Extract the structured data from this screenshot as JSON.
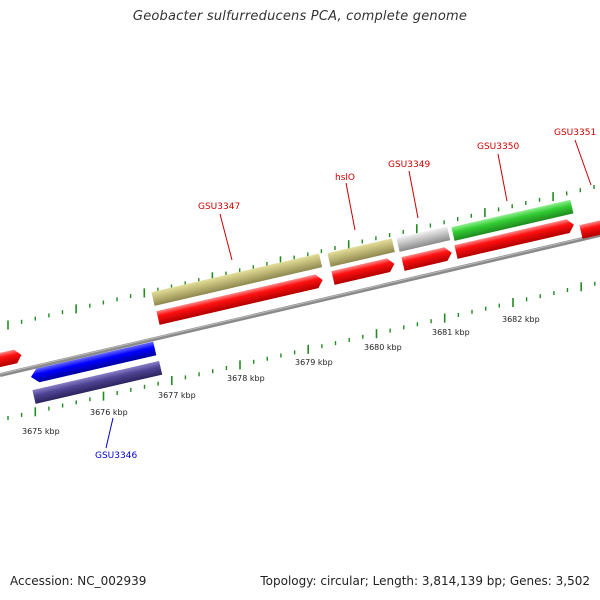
{
  "title": "Geobacter sulfurreducens PCA, complete genome",
  "footer": {
    "accession": "Accession: NC_002939",
    "summary": "Topology: circular; Length: 3,814,139 bp; Genes: 3,502"
  },
  "kbp_labels": [
    "3675 kbp",
    "3676 kbp",
    "3677 kbp",
    "3678 kbp",
    "3679 kbp",
    "3680 kbp",
    "3681 kbp",
    "3682 kbp"
  ],
  "gene_labels": [
    {
      "name": "GSU3346",
      "color": "#0000cc"
    },
    {
      "name": "GSU3347",
      "color": "#cc0000"
    },
    {
      "name": "hslO",
      "color": "#cc0000"
    },
    {
      "name": "GSU3349",
      "color": "#cc0000"
    },
    {
      "name": "GSU3350",
      "color": "#cc0000"
    },
    {
      "name": "GSU3351",
      "color": "#cc0000"
    }
  ],
  "colors": {
    "red_feature": "#ff0000",
    "khaki_feature": "#bdb76b",
    "blue_feature": "#0000ff",
    "navy_feature": "#483d8b",
    "green_feature": "#32cd32",
    "grey_feature": "#c0c0c0",
    "tick_green": "#228b22",
    "backbone": "#808080"
  }
}
